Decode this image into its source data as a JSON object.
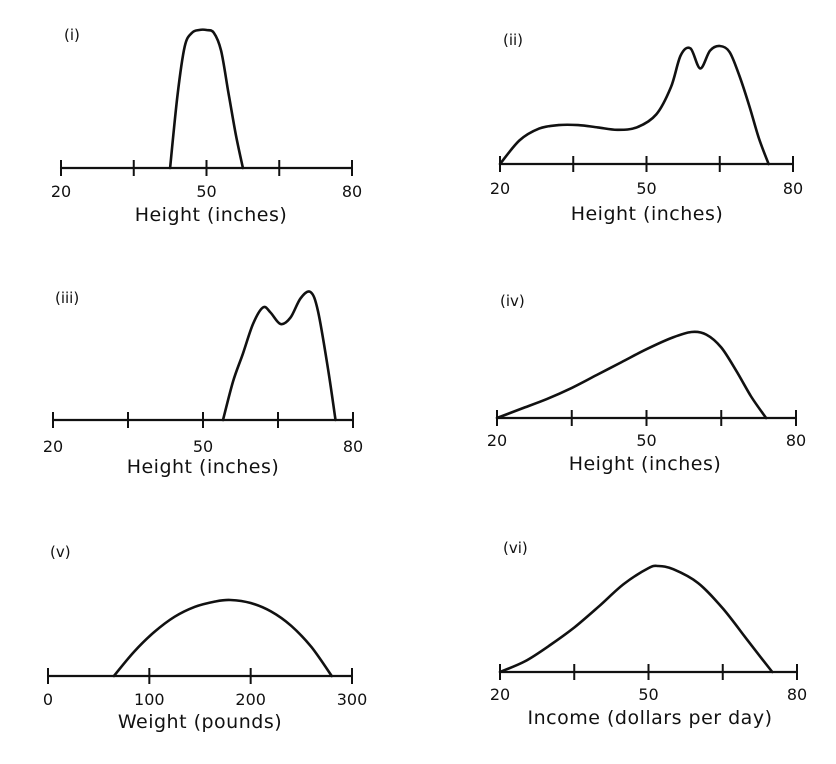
{
  "chart_data": [
    {
      "type": "line",
      "panel": "(i)",
      "xlabel": "Height (inches)",
      "xlim": [
        20,
        80
      ],
      "x_ticks": [
        20,
        35,
        50,
        65,
        80
      ],
      "x_tick_labels": [
        "20",
        "",
        "50",
        "",
        "80"
      ],
      "y_axis_shown": false,
      "series": [
        {
          "x": [
            42.5,
            44,
            45.5,
            47,
            48.5,
            50,
            51.5,
            53,
            54.5,
            56,
            57.5
          ],
          "y": [
            0,
            0.52,
            0.88,
            0.98,
            1.0,
            1.0,
            0.98,
            0.85,
            0.55,
            0.25,
            0
          ]
        }
      ]
    },
    {
      "type": "line",
      "panel": "(ii)",
      "xlabel": "Height (inches)",
      "xlim": [
        20,
        80
      ],
      "x_ticks": [
        20,
        35,
        50,
        65,
        80
      ],
      "x_tick_labels": [
        "20",
        "",
        "50",
        "",
        "80"
      ],
      "y_axis_shown": false,
      "series": [
        {
          "x": [
            20,
            24,
            28,
            32,
            36,
            40,
            44,
            48,
            52,
            55,
            57,
            59,
            61,
            63,
            65,
            67,
            69,
            71,
            73,
            75
          ],
          "y": [
            0,
            0.2,
            0.3,
            0.33,
            0.33,
            0.31,
            0.29,
            0.31,
            0.42,
            0.65,
            0.92,
            0.98,
            0.81,
            0.96,
            1.0,
            0.95,
            0.75,
            0.5,
            0.22,
            0
          ]
        }
      ]
    },
    {
      "type": "line",
      "panel": "(iii)",
      "xlabel": "Height (inches)",
      "xlim": [
        20,
        80
      ],
      "x_ticks": [
        20,
        35,
        50,
        65,
        80
      ],
      "x_tick_labels": [
        "20",
        "",
        "50",
        "",
        "80"
      ],
      "y_axis_shown": false,
      "series": [
        {
          "x": [
            54,
            56,
            58,
            60,
            62,
            63.5,
            65.5,
            67.5,
            69.5,
            71.5,
            73,
            75,
            76.5
          ],
          "y": [
            0,
            0.3,
            0.52,
            0.75,
            0.88,
            0.84,
            0.75,
            0.8,
            0.95,
            1.0,
            0.85,
            0.4,
            0
          ]
        }
      ]
    },
    {
      "type": "line",
      "panel": "(iv)",
      "xlabel": "Height (inches)",
      "xlim": [
        20,
        80
      ],
      "x_ticks": [
        20,
        35,
        50,
        65,
        80
      ],
      "x_tick_labels": [
        "20",
        "",
        "50",
        "",
        "80"
      ],
      "y_axis_shown": false,
      "series": [
        {
          "x": [
            20,
            25,
            30,
            35,
            40,
            45,
            50,
            55,
            59,
            62,
            65,
            68,
            71,
            74
          ],
          "y": [
            0,
            0.11,
            0.22,
            0.35,
            0.5,
            0.65,
            0.8,
            0.93,
            1.0,
            0.97,
            0.82,
            0.55,
            0.25,
            0
          ]
        }
      ]
    },
    {
      "type": "line",
      "panel": "(v)",
      "xlabel": "Weight (pounds)",
      "xlim": [
        0,
        300
      ],
      "x_ticks": [
        0,
        100,
        200,
        300
      ],
      "x_tick_labels": [
        "0",
        "100",
        "200",
        "300"
      ],
      "y_axis_shown": false,
      "series": [
        {
          "x": [
            65,
            85,
            105,
            125,
            145,
            165,
            180,
            200,
            220,
            240,
            260,
            280
          ],
          "y": [
            0,
            0.32,
            0.58,
            0.78,
            0.91,
            0.98,
            1.0,
            0.96,
            0.85,
            0.66,
            0.38,
            0
          ]
        }
      ]
    },
    {
      "type": "line",
      "panel": "(vi)",
      "xlabel": "Income (dollars per day)",
      "xlim": [
        20,
        80
      ],
      "x_ticks": [
        20,
        35,
        50,
        65,
        80
      ],
      "x_tick_labels": [
        "20",
        "",
        "50",
        "",
        "80"
      ],
      "y_axis_shown": false,
      "series": [
        {
          "x": [
            20,
            25,
            30,
            35,
            40,
            45,
            50,
            52,
            55,
            60,
            65,
            70,
            73,
            75
          ],
          "y": [
            0,
            0.1,
            0.25,
            0.42,
            0.62,
            0.83,
            0.98,
            1.0,
            0.97,
            0.84,
            0.6,
            0.3,
            0.12,
            0
          ]
        }
      ]
    }
  ]
}
